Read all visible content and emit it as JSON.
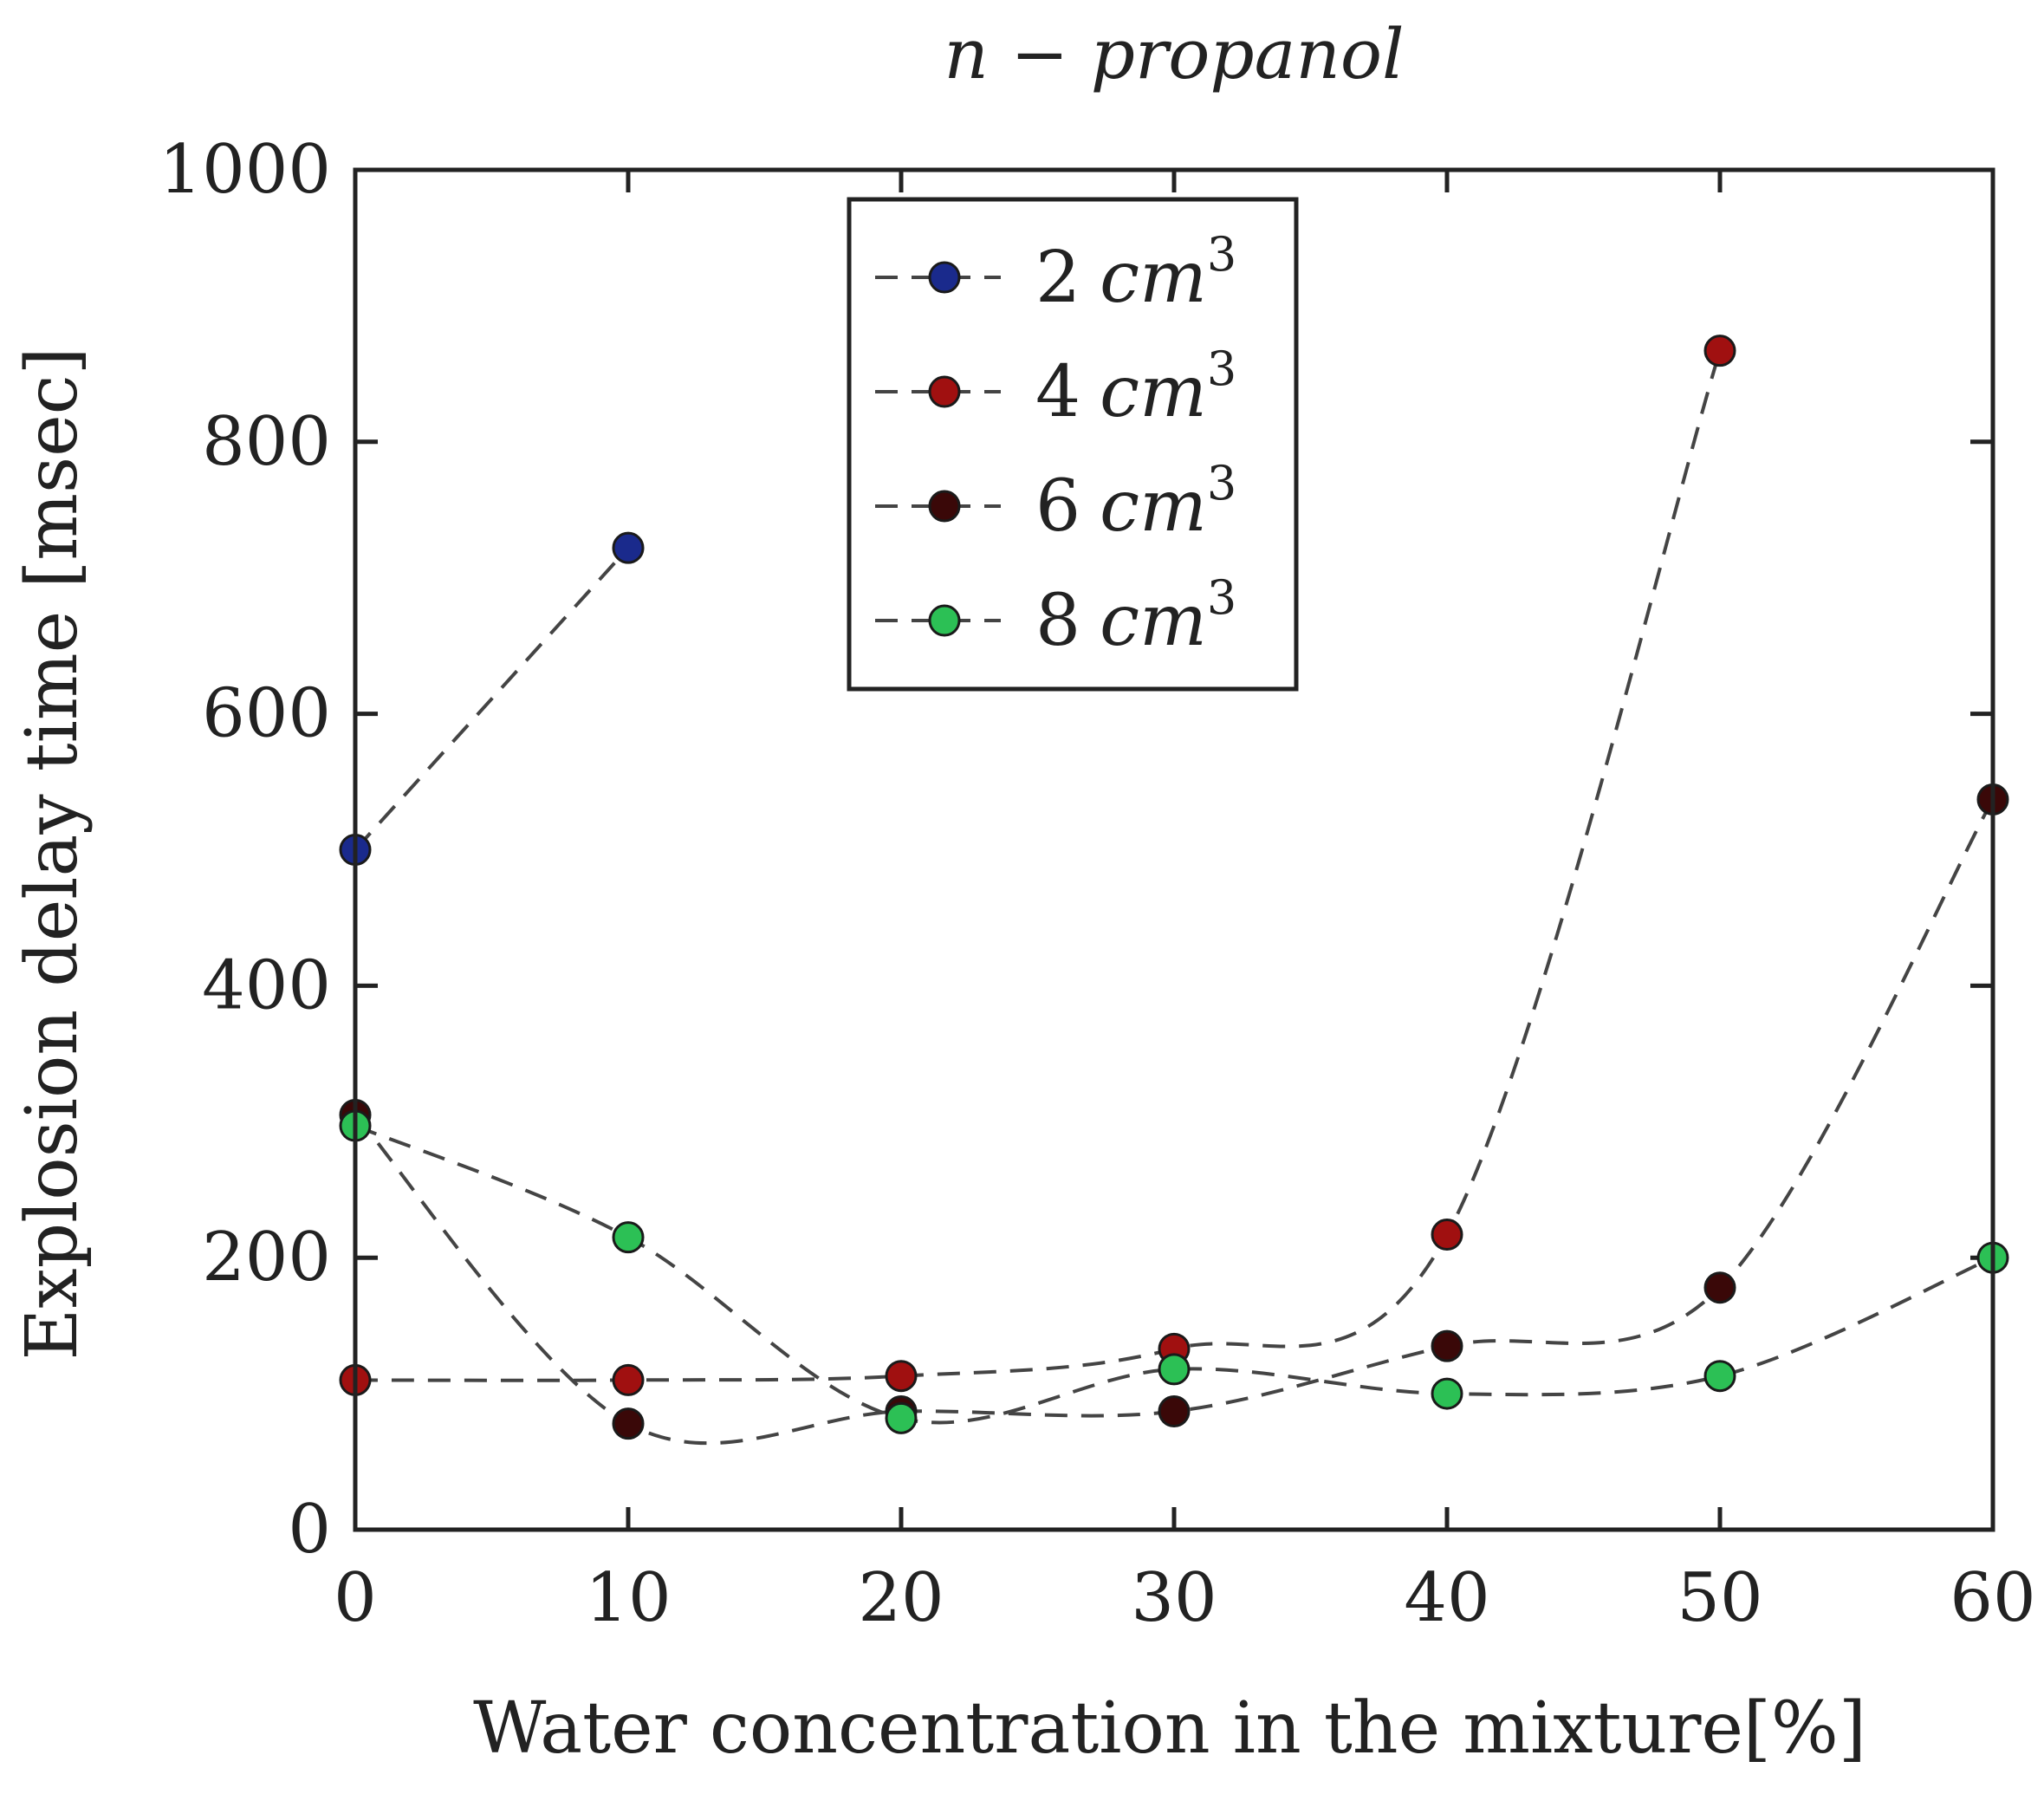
{
  "chart_data": {
    "type": "line",
    "title": "n − propanol",
    "xlabel": "Water concentration in the mixture[%]",
    "ylabel": "Explosion delay time [msec]",
    "xlim": [
      0,
      60
    ],
    "ylim": [
      0,
      1000
    ],
    "xticks": [
      0,
      10,
      20,
      30,
      40,
      50,
      60
    ],
    "yticks": [
      0,
      200,
      400,
      600,
      800,
      1000
    ],
    "grid": false,
    "legend_position": "top-center",
    "series": [
      {
        "name": "2",
        "unit": "cm",
        "exponent": "3",
        "color": "#1a2a8c",
        "x": [
          0,
          10
        ],
        "y": [
          500,
          722
        ]
      },
      {
        "name": "4",
        "unit": "cm",
        "exponent": "3",
        "color": "#a01010",
        "x": [
          0,
          10,
          20,
          30,
          40,
          50
        ],
        "y": [
          110,
          110,
          113,
          133,
          217,
          867
        ]
      },
      {
        "name": "6",
        "unit": "cm",
        "exponent": "3",
        "color": "#3a0808",
        "x": [
          0,
          10,
          20,
          30,
          40,
          50,
          60
        ],
        "y": [
          305,
          78,
          87,
          87,
          135,
          178,
          537
        ]
      },
      {
        "name": "8",
        "unit": "cm",
        "exponent": "3",
        "color": "#2cc055",
        "x": [
          0,
          10,
          20,
          30,
          40,
          50,
          60
        ],
        "y": [
          297,
          215,
          82,
          118,
          100,
          113,
          200
        ]
      }
    ]
  }
}
